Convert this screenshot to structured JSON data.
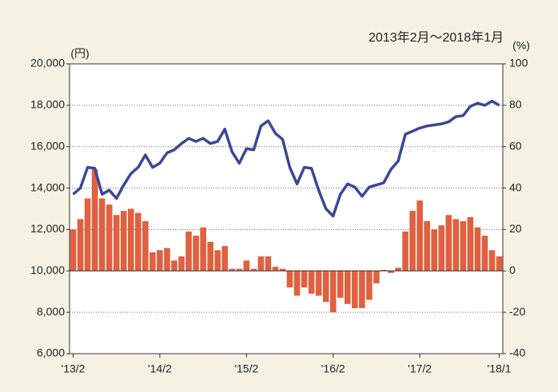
{
  "chart_data": {
    "type": "bar-line",
    "subtitle": "2013年2月～2018年1月",
    "y_label": "(円)",
    "y2_label": "(%)",
    "categories": [
      "'13/2",
      null,
      null,
      null,
      null,
      null,
      null,
      null,
      null,
      null,
      null,
      null,
      "'14/2",
      null,
      null,
      null,
      null,
      null,
      null,
      null,
      null,
      null,
      null,
      null,
      "'15/2",
      null,
      null,
      null,
      null,
      null,
      null,
      null,
      null,
      null,
      null,
      null,
      "'16/2",
      null,
      null,
      null,
      null,
      null,
      null,
      null,
      null,
      null,
      null,
      null,
      "'17/2",
      null,
      null,
      null,
      null,
      null,
      null,
      null,
      null,
      null,
      null,
      "'18/1"
    ],
    "series": [
      {
        "kind": "bar",
        "axis": "y2",
        "color": "#e0603f",
        "values": [
          20,
          25,
          35,
          49,
          35,
          32,
          27,
          29,
          30,
          28,
          24,
          9,
          10,
          11,
          5,
          7,
          19,
          17,
          21,
          14,
          10,
          12,
          1,
          1,
          5,
          1,
          7,
          7,
          2,
          1,
          -8,
          -12,
          -8,
          -11,
          -12,
          -15,
          -20,
          -13,
          -16,
          -18,
          -18,
          -14,
          -6,
          0.5,
          -1,
          1.5,
          19,
          29,
          34,
          24,
          20,
          22,
          27,
          25,
          24,
          26,
          21,
          17,
          10,
          7
        ]
      },
      {
        "kind": "line",
        "axis": "y",
        "color": "#3b4796",
        "values": [
          13700,
          14000,
          15000,
          14950,
          13700,
          13900,
          13500,
          14150,
          14700,
          15000,
          15600,
          15000,
          15200,
          15700,
          15850,
          16150,
          16400,
          16250,
          16400,
          16150,
          16250,
          16850,
          15750,
          15200,
          15900,
          15850,
          17000,
          17250,
          16650,
          16350,
          15000,
          14200,
          15000,
          14950,
          13900,
          13000,
          12650,
          13700,
          14200,
          14050,
          13600,
          14050,
          14150,
          14250,
          14900,
          15300,
          16600,
          16750,
          16900,
          17000,
          17050,
          17100,
          17200,
          17450,
          17500,
          17950,
          18100,
          18000,
          18200,
          18000
        ]
      }
    ],
    "ylim": [
      6000,
      20000
    ],
    "yticks": [
      {
        "value": 6000,
        "label": "6,000"
      },
      {
        "value": 8000,
        "label": "8,000"
      },
      {
        "value": 10000,
        "label": "10,000"
      },
      {
        "value": 12000,
        "label": "12,000"
      },
      {
        "value": 14000,
        "label": "14,000"
      },
      {
        "value": 16000,
        "label": "16,000"
      },
      {
        "value": 18000,
        "label": "18,000"
      },
      {
        "value": 20000,
        "label": "20,000"
      }
    ],
    "y2lim": [
      -40,
      100
    ],
    "y2ticks": [
      -40,
      -20,
      0,
      20,
      40,
      60,
      80,
      100
    ],
    "grid": true
  }
}
